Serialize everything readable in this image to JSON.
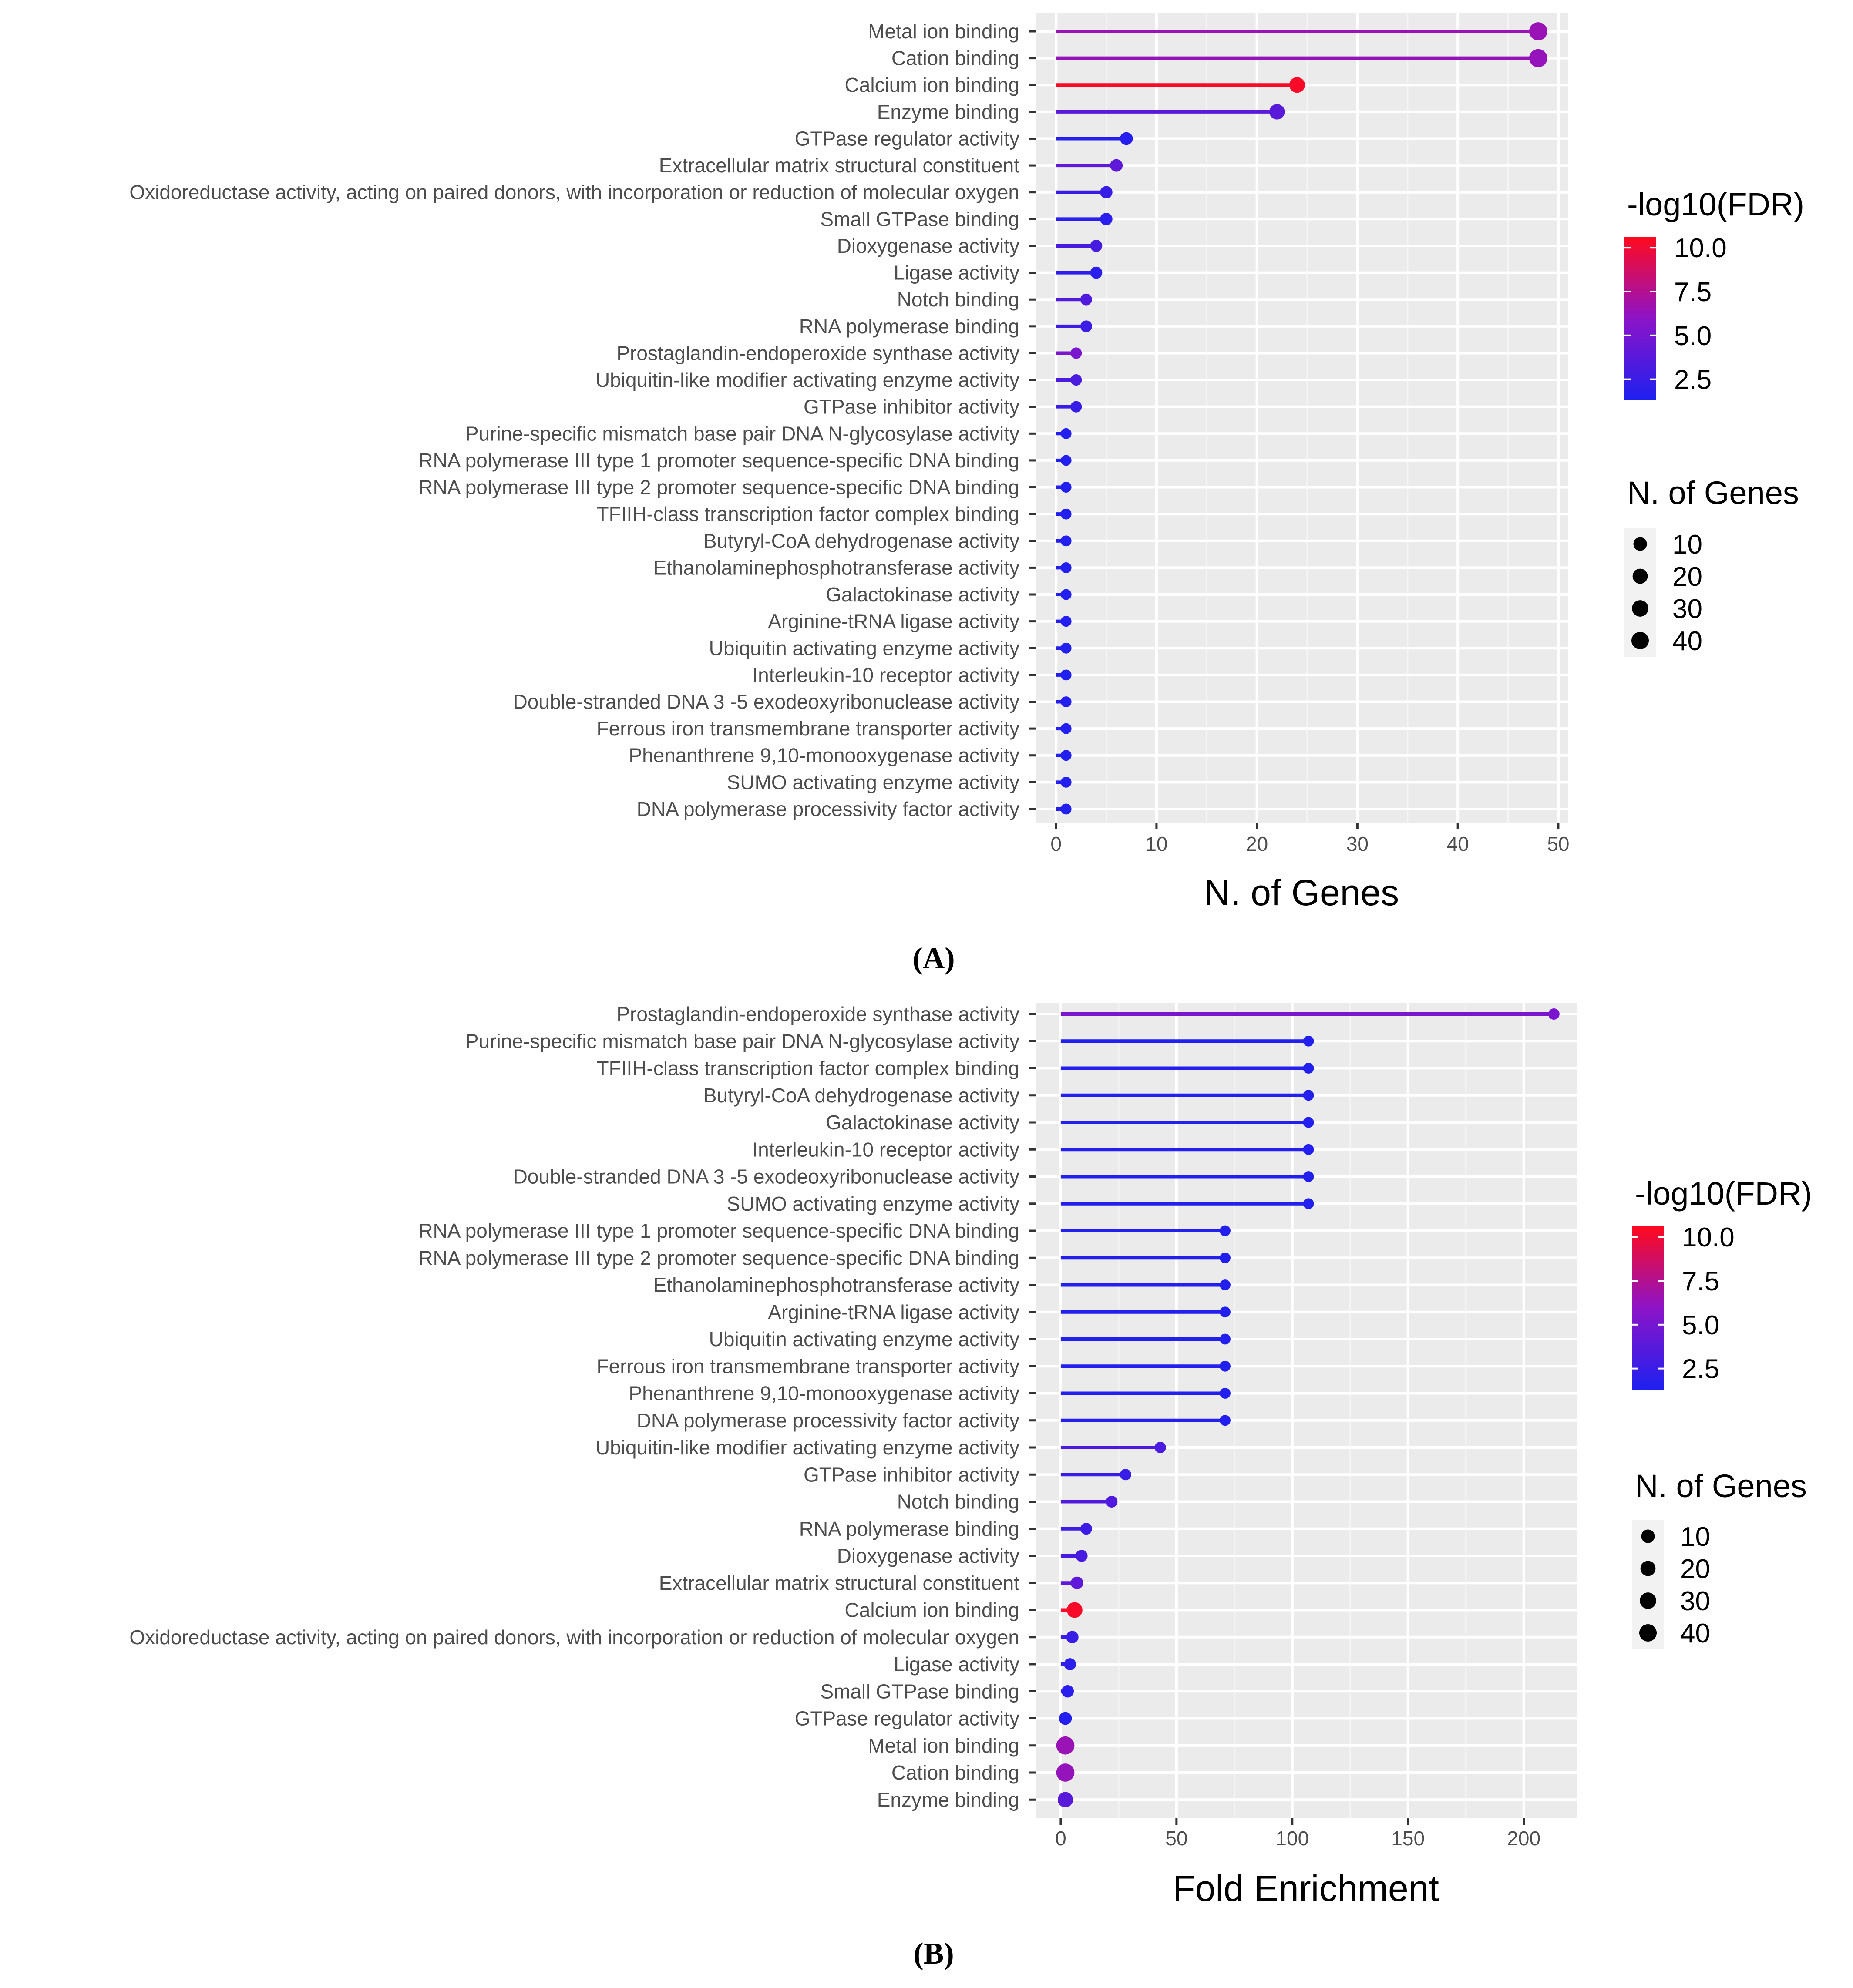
{
  "chart_data": [
    {
      "type": "lollipop",
      "panel_label": "(A)",
      "xlabel": "N. of Genes",
      "ylabel": "",
      "xlim": [
        -2,
        51
      ],
      "x_ticks": [
        0,
        10,
        20,
        30,
        40,
        50
      ],
      "grid": true,
      "legend_position": "right",
      "color_legend": {
        "title": "-log10(FDR)",
        "ticks": [
          10.0,
          7.5,
          5.0,
          2.5
        ],
        "tick_labels": [
          "10.0",
          "7.5",
          "5.0",
          "2.5"
        ],
        "range": [
          1.3,
          10.6
        ],
        "low_color": "#1e20f0",
        "mid_color": "#8c14c8",
        "high_color": "#ff0a1e"
      },
      "size_legend": {
        "title": "N. of Genes",
        "breaks": [
          10,
          20,
          30,
          40
        ],
        "labels": [
          "10",
          "20",
          "30",
          "40"
        ]
      },
      "categories": [
        "Metal ion binding",
        "Cation binding",
        "Calcium ion binding",
        "Enzyme binding",
        "GTPase regulator activity",
        "Extracellular matrix structural constituent",
        "Oxidoreductase activity, acting on paired donors, with incorporation or reduction of molecular oxygen",
        "Small GTPase binding",
        "Dioxygenase activity",
        "Ligase activity",
        "Notch binding",
        "RNA polymerase binding",
        "Prostaglandin-endoperoxide synthase activity",
        "Ubiquitin-like modifier activating enzyme activity",
        "GTPase inhibitor activity",
        "Purine-specific mismatch base pair DNA N-glycosylase activity",
        "RNA polymerase III type 1 promoter sequence-specific DNA binding",
        "RNA polymerase III type 2 promoter sequence-specific DNA binding",
        "TFIIH-class transcription factor complex binding",
        "Butyryl-CoA dehydrogenase activity",
        "Ethanolaminephosphotransferase activity",
        "Galactokinase activity",
        "Arginine-tRNA ligase activity",
        "Ubiquitin activating enzyme activity",
        "Interleukin-10 receptor activity",
        "Double-stranded DNA 3 -5  exodeoxyribonuclease activity",
        "Ferrous iron transmembrane transporter activity",
        "Phenanthrene 9,10-monooxygenase activity",
        "SUMO activating enzyme activity",
        "DNA polymerase processivity factor activity"
      ],
      "values": [
        48,
        48,
        24,
        22,
        7,
        6,
        5,
        5,
        4,
        4,
        3,
        3,
        2,
        2,
        2,
        1,
        1,
        1,
        1,
        1,
        1,
        1,
        1,
        1,
        1,
        1,
        1,
        1,
        1,
        1
      ],
      "n_genes": [
        48,
        48,
        24,
        22,
        7,
        6,
        5,
        5,
        4,
        4,
        3,
        3,
        2,
        2,
        2,
        1,
        1,
        1,
        1,
        1,
        1,
        1,
        1,
        1,
        1,
        1,
        1,
        1,
        1,
        1
      ],
      "neg_log10_fdr": [
        6.5,
        6.3,
        10.3,
        3.8,
        1.6,
        4.0,
        2.4,
        1.8,
        3.0,
        1.9,
        3.4,
        2.6,
        5.2,
        3.2,
        2.4,
        1.5,
        1.5,
        1.5,
        1.5,
        1.5,
        1.5,
        1.5,
        1.5,
        1.5,
        1.5,
        1.5,
        1.5,
        1.5,
        1.5,
        1.5
      ]
    },
    {
      "type": "lollipop",
      "panel_label": "(B)",
      "xlabel": "Fold Enrichment",
      "ylabel": "",
      "xlim": [
        -10.7,
        223
      ],
      "x_ticks": [
        0,
        50,
        100,
        150,
        200
      ],
      "grid": true,
      "legend_position": "right",
      "color_legend": {
        "title": "-log10(FDR)",
        "ticks": [
          10.0,
          7.5,
          5.0,
          2.5
        ],
        "tick_labels": [
          "10.0",
          "7.5",
          "5.0",
          "2.5"
        ],
        "range": [
          1.3,
          10.6
        ],
        "low_color": "#1e20f0",
        "mid_color": "#8c14c8",
        "high_color": "#ff0a1e"
      },
      "size_legend": {
        "title": "N. of Genes",
        "breaks": [
          10,
          20,
          30,
          40
        ],
        "labels": [
          "10",
          "20",
          "30",
          "40"
        ]
      },
      "categories": [
        "Prostaglandin-endoperoxide synthase activity",
        "Purine-specific mismatch base pair DNA N-glycosylase activity",
        "TFIIH-class transcription factor complex binding",
        "Butyryl-CoA dehydrogenase activity",
        "Galactokinase activity",
        "Interleukin-10 receptor activity",
        "Double-stranded DNA 3 -5  exodeoxyribonuclease activity",
        "SUMO activating enzyme activity",
        "RNA polymerase III type 1 promoter sequence-specific DNA binding",
        "RNA polymerase III type 2 promoter sequence-specific DNA binding",
        "Ethanolaminephosphotransferase activity",
        "Arginine-tRNA ligase activity",
        "Ubiquitin activating enzyme activity",
        "Ferrous iron transmembrane transporter activity",
        "Phenanthrene 9,10-monooxygenase activity",
        "DNA polymerase processivity factor activity",
        "Ubiquitin-like modifier activating enzyme activity",
        "GTPase inhibitor activity",
        "Notch binding",
        "RNA polymerase binding",
        "Dioxygenase activity",
        "Extracellular matrix structural constituent",
        "Calcium ion binding",
        "Oxidoreductase activity, acting on paired donors, with incorporation or reduction of molecular oxygen",
        "Ligase activity",
        "Small GTPase binding",
        "GTPase regulator activity",
        "Metal ion binding",
        "Cation binding",
        "Enzyme binding"
      ],
      "values": [
        213,
        107,
        107,
        107,
        107,
        107,
        107,
        107,
        71,
        71,
        71,
        71,
        71,
        71,
        71,
        71,
        43,
        28,
        22,
        11,
        9,
        7,
        6,
        5,
        4,
        3,
        2,
        2,
        2,
        2
      ],
      "n_genes": [
        2,
        1,
        1,
        1,
        1,
        1,
        1,
        1,
        1,
        1,
        1,
        1,
        1,
        1,
        1,
        1,
        2,
        2,
        3,
        3,
        4,
        6,
        24,
        5,
        4,
        5,
        7,
        48,
        48,
        22
      ],
      "neg_log10_fdr": [
        5.2,
        1.5,
        1.5,
        1.5,
        1.5,
        1.5,
        1.5,
        1.5,
        1.5,
        1.5,
        1.5,
        1.5,
        1.5,
        1.5,
        1.5,
        1.5,
        3.2,
        2.4,
        3.4,
        2.6,
        3.0,
        4.0,
        10.3,
        2.4,
        1.9,
        1.8,
        1.6,
        6.5,
        6.3,
        3.8
      ]
    }
  ]
}
